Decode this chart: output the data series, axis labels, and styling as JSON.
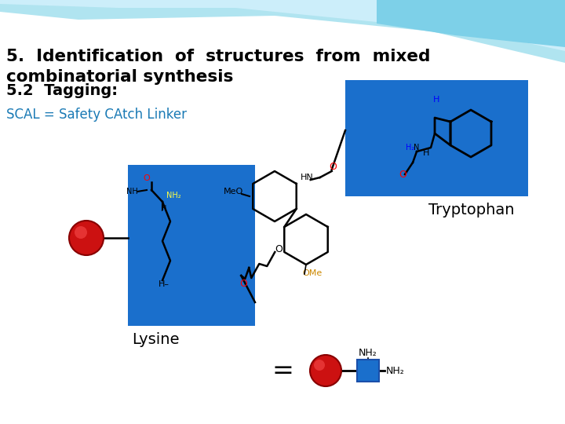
{
  "title_line1": "5.  Identification  of  structures  from  mixed",
  "title_line2": "combinatorial synthesis",
  "subtitle": "5.2  Tagging:",
  "scal_text": "SCAL = Safety CAtch Linker",
  "lysine_label": "Lysine",
  "tryptophan_label": "Tryptophan",
  "equal_sign": "=",
  "nh2_top": "NH₂",
  "nh2_right": "NH₂",
  "bg_color": "#ffffff",
  "title_color": "#000000",
  "scal_color": "#1a7ab5",
  "blue_box_color": "#1a6fcc",
  "red_ball_color": "#cc1111",
  "title_fontsize": 15.5,
  "subtitle_fontsize": 14,
  "scal_fontsize": 12,
  "label_fontsize": 14,
  "wave_color1": "#a8dce8",
  "wave_color2": "#c0ecf8",
  "wave_color3": "#e0f6fc"
}
